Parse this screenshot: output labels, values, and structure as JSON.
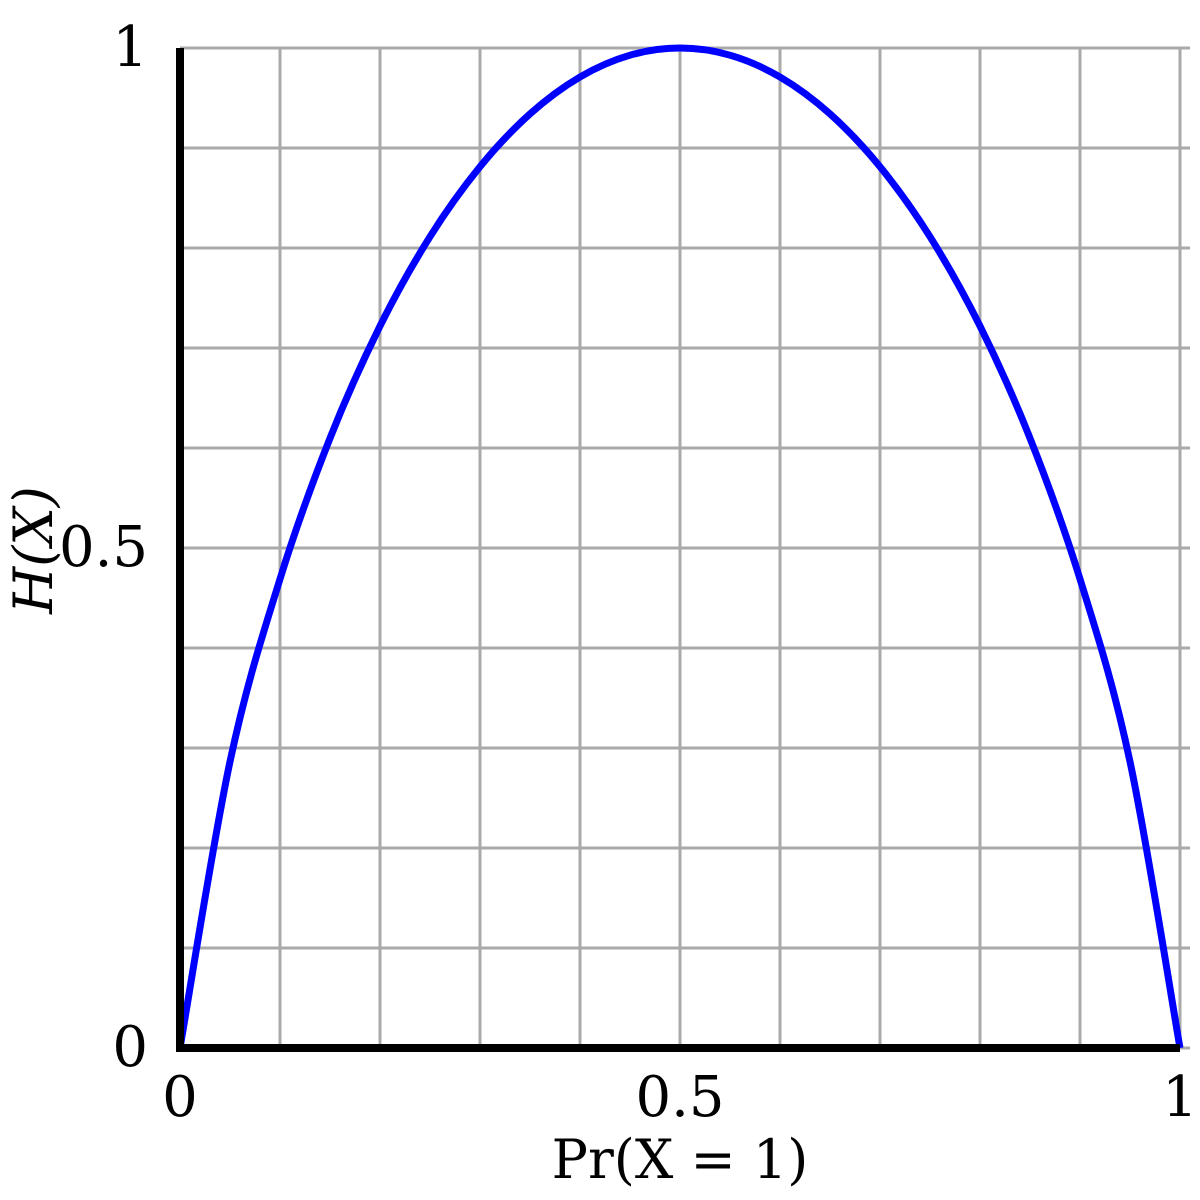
{
  "chart_data": {
    "type": "line",
    "title": "",
    "xlabel": "Pr(X = 1)",
    "ylabel": "H(X)",
    "xlim": [
      0,
      1
    ],
    "ylim": [
      0,
      1
    ],
    "grid": true,
    "grid_step": 0.1,
    "x_ticks": [
      {
        "value": 0,
        "label": "0"
      },
      {
        "value": 0.5,
        "label": "0.5"
      },
      {
        "value": 1,
        "label": "1"
      }
    ],
    "y_ticks": [
      {
        "value": 0,
        "label": "0"
      },
      {
        "value": 0.5,
        "label": "0.5"
      },
      {
        "value": 1,
        "label": "1"
      }
    ],
    "series": [
      {
        "color": "#0000ff",
        "x": [
          0,
          0.05,
          0.1,
          0.15,
          0.2,
          0.25,
          0.3,
          0.35,
          0.4,
          0.45,
          0.5,
          0.55,
          0.6,
          0.65,
          0.7,
          0.75,
          0.8,
          0.85,
          0.9,
          0.95,
          1
        ],
        "y": [
          0,
          0.2864,
          0.469,
          0.6098,
          0.7219,
          0.8113,
          0.8813,
          0.9341,
          0.971,
          0.9928,
          1,
          0.9928,
          0.971,
          0.9341,
          0.8813,
          0.8113,
          0.7219,
          0.6098,
          0.469,
          0.2864,
          0
        ]
      }
    ],
    "colors": {
      "grid": "#aaaaaa",
      "axis": "#000000"
    }
  }
}
